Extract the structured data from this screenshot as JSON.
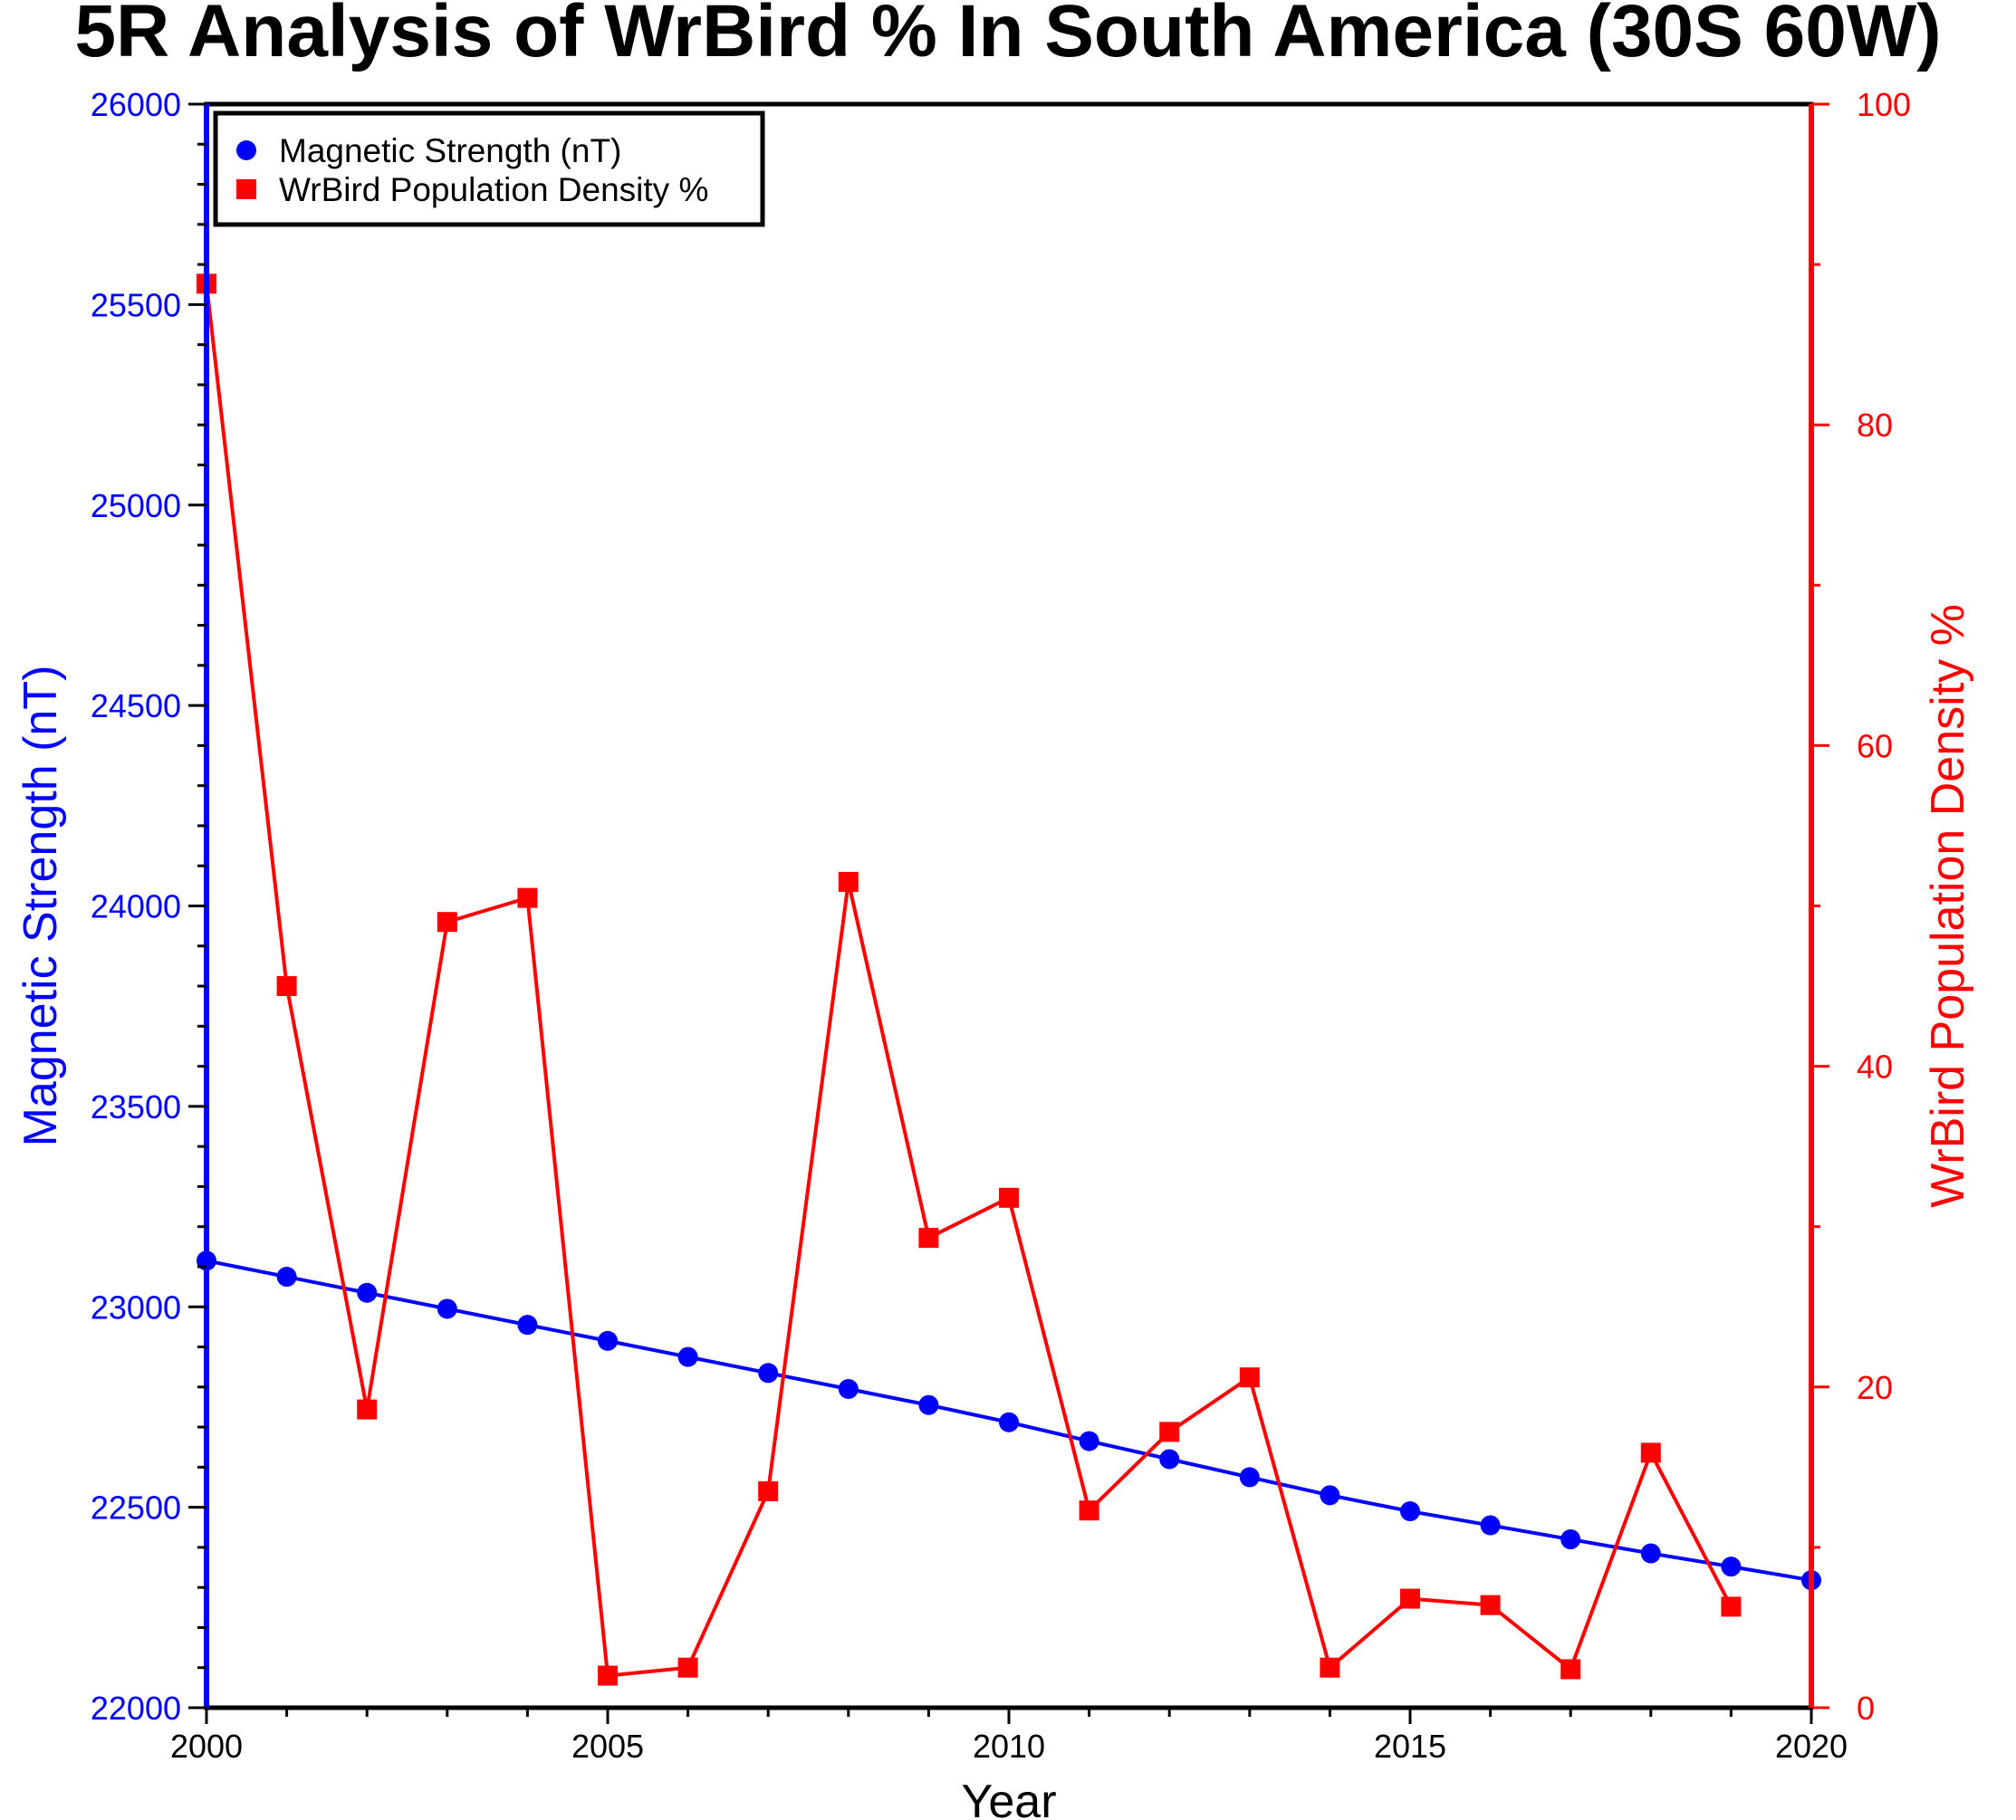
{
  "chart_data": {
    "type": "line",
    "title": "5R Analysis of WrBird % In South America (30S 60W)",
    "xlabel": "Year",
    "ylabel_left": "Magnetic Strength (nT)",
    "ylabel_right": "WrBird Population Density %",
    "xlim": [
      2000,
      2020
    ],
    "ylim_left": [
      22000,
      26000
    ],
    "ylim_right": [
      0,
      100
    ],
    "x_ticks": [
      "2000",
      "2005",
      "2010",
      "2015",
      "2020"
    ],
    "y_ticks_left": [
      "22000",
      "22500",
      "23000",
      "23500",
      "24000",
      "24500",
      "25000",
      "25500",
      "26000"
    ],
    "y_ticks_right": [
      "0",
      "20",
      "40",
      "60",
      "80",
      "100"
    ],
    "legend_position": "top-left",
    "grid": false,
    "series": [
      {
        "name": "Magnetic Strength (nT)",
        "axis": "left",
        "color": "#0000ff",
        "marker": "circle",
        "x": [
          2000,
          2001,
          2002,
          2003,
          2004,
          2005,
          2006,
          2007,
          2008,
          2009,
          2010,
          2011,
          2012,
          2013,
          2014,
          2015,
          2016,
          2017,
          2018,
          2019,
          2020
        ],
        "values": [
          23115,
          23075,
          23035,
          22995,
          22955,
          22915,
          22875,
          22835,
          22795,
          22755,
          22712,
          22665,
          22620,
          22575,
          22530,
          22490,
          22455,
          22420,
          22385,
          22352,
          22318
        ]
      },
      {
        "name": "WrBird Population Density %",
        "axis": "right",
        "color": "#ff0000",
        "marker": "square",
        "x": [
          2000,
          2001,
          2002,
          2003,
          2004,
          2005,
          2006,
          2007,
          2008,
          2009,
          2010,
          2011,
          2012,
          2013,
          2014,
          2015,
          2016,
          2017,
          2018,
          2019
        ],
        "values": [
          88.8,
          45.0,
          18.6,
          49.0,
          50.5,
          2.0,
          2.5,
          13.5,
          51.5,
          29.3,
          31.8,
          12.3,
          17.2,
          20.6,
          2.5,
          6.8,
          6.4,
          2.4,
          15.9,
          6.3
        ]
      }
    ]
  }
}
